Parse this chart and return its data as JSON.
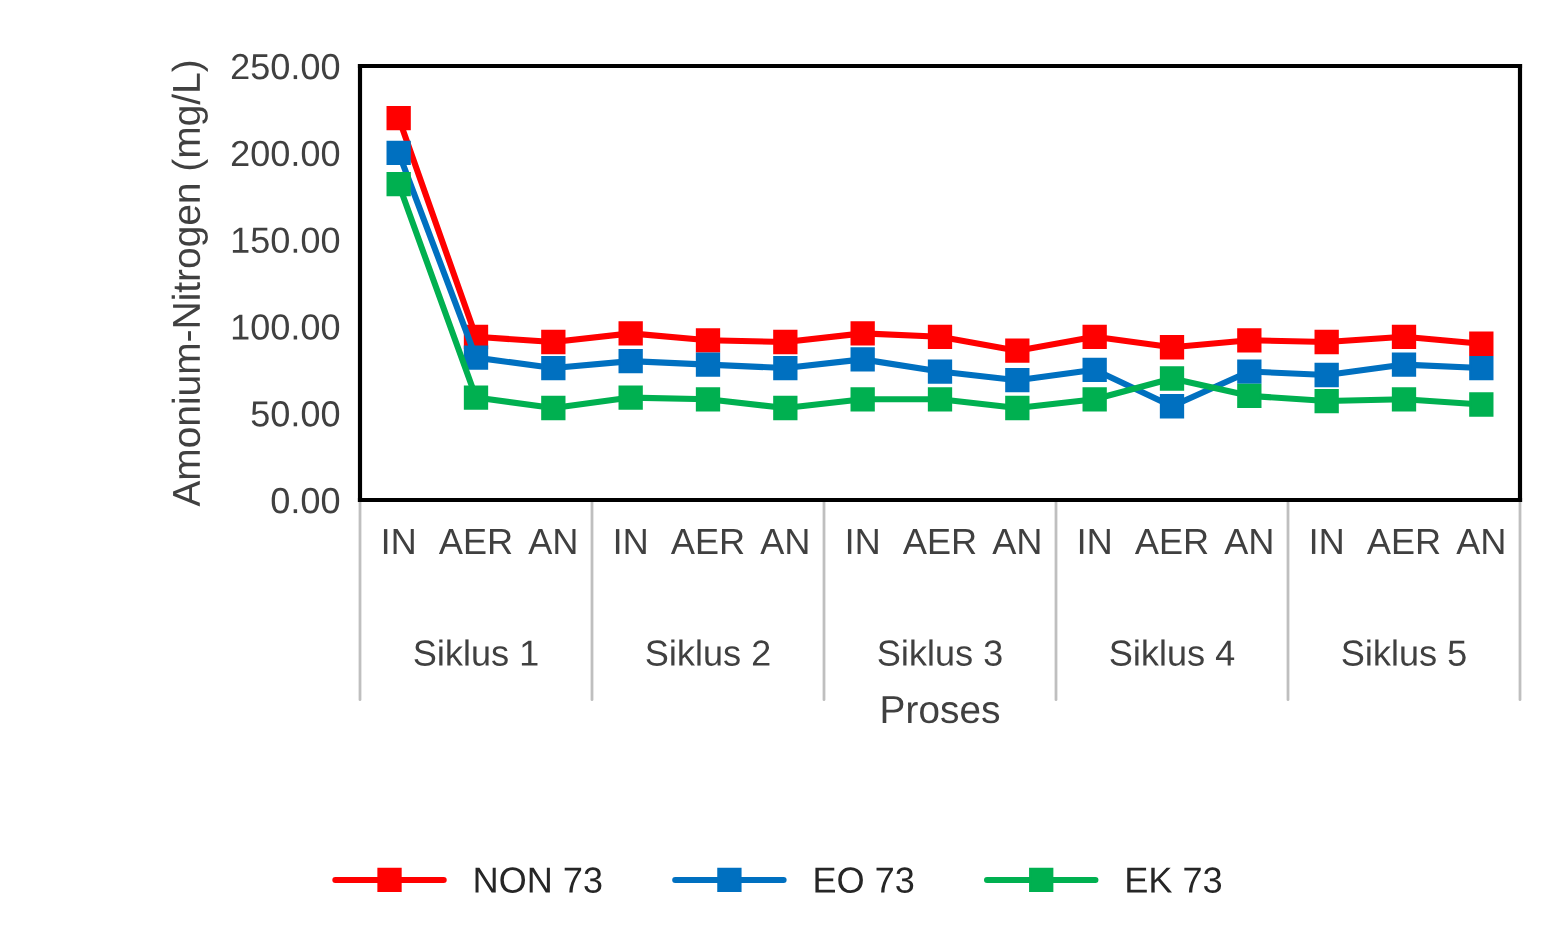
{
  "chart_data": {
    "type": "line",
    "xlabel": "Proses",
    "ylabel": "Amonium-Nitrogen (mg/L)",
    "categories": [
      "IN",
      "AER",
      "AN",
      "IN",
      "AER",
      "AN",
      "IN",
      "AER",
      "AN",
      "IN",
      "AER",
      "AN",
      "IN",
      "AER",
      "AN"
    ],
    "annotations": [
      "Siklus 1",
      "Siklus 2",
      "Siklus 3",
      "Siklus 4",
      "Siklus 5"
    ],
    "series": [
      {
        "name": "NON 73",
        "color": "#ff0000",
        "values": [
          220,
          94,
          91,
          96,
          92,
          91,
          96,
          94,
          86,
          94,
          88,
          92,
          91,
          94,
          90
        ]
      },
      {
        "name": "EO 73",
        "color": "#0070c0",
        "values": [
          200,
          82,
          76,
          80,
          78,
          76,
          81,
          74,
          69,
          75,
          54,
          74,
          72,
          78,
          76
        ]
      },
      {
        "name": "EK 73",
        "color": "#00b050",
        "values": [
          182,
          59,
          53,
          59,
          58,
          53,
          58,
          58,
          53,
          58,
          70,
          60,
          57,
          58,
          55
        ]
      }
    ],
    "ylim": [
      0,
      250
    ],
    "yticks": [
      {
        "value": 0,
        "label": "0.00"
      },
      {
        "value": 50,
        "label": "50.00"
      },
      {
        "value": 100,
        "label": "100.00"
      },
      {
        "value": 150,
        "label": "150.00"
      },
      {
        "value": 200,
        "label": "200.00"
      },
      {
        "value": 250,
        "label": "250.00"
      }
    ],
    "grid": false,
    "legend": "bottom",
    "marker": "square",
    "line_style": "solid"
  }
}
